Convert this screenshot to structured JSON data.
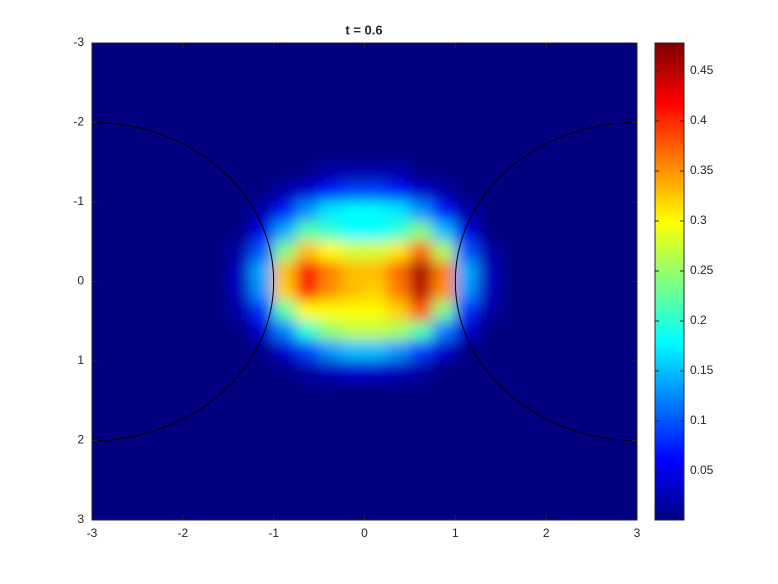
{
  "chart_data": {
    "type": "heatmap",
    "title": "t = 0.6",
    "x": [
      -2.875,
      -2.625,
      -2.375,
      -2.125,
      -1.875,
      -1.625,
      -1.375,
      -1.125,
      -0.875,
      -0.625,
      -0.375,
      -0.125,
      0.125,
      0.375,
      0.625,
      0.875,
      1.125,
      1.375,
      1.625,
      1.875,
      2.125,
      2.375,
      2.625,
      2.875
    ],
    "y": [
      -2.875,
      -2.625,
      -2.375,
      -2.125,
      -1.875,
      -1.625,
      -1.375,
      -1.125,
      -0.875,
      -0.625,
      -0.375,
      -0.125,
      0.125,
      0.375,
      0.625,
      0.875,
      1.125,
      1.375,
      1.625,
      1.875,
      2.125,
      2.375,
      2.625,
      2.875
    ],
    "z": [
      [
        0,
        0,
        0,
        0,
        0,
        0,
        0,
        0,
        0,
        0,
        0,
        0,
        0,
        0,
        0,
        0,
        0,
        0,
        0,
        0,
        0,
        0,
        0,
        0
      ],
      [
        0,
        0,
        0,
        0,
        0,
        0,
        0,
        0,
        0,
        0,
        0,
        0,
        0,
        0,
        0,
        0,
        0,
        0,
        0,
        0,
        0,
        0,
        0,
        0
      ],
      [
        0,
        0,
        0,
        0,
        0,
        0,
        0,
        0,
        0,
        0,
        0,
        0,
        0,
        0,
        0,
        0,
        0,
        0,
        0,
        0,
        0,
        0,
        0,
        0
      ],
      [
        0,
        0,
        0,
        0,
        0,
        0,
        0,
        0,
        0,
        0,
        0,
        0,
        0,
        0,
        0,
        0,
        0,
        0,
        0,
        0,
        0,
        0,
        0,
        0
      ],
      [
        0,
        0,
        0,
        0,
        0,
        0,
        0,
        0,
        0,
        0,
        0,
        0,
        0,
        0,
        0,
        0,
        0,
        0,
        0,
        0,
        0,
        0,
        0,
        0
      ],
      [
        0,
        0,
        0,
        0,
        0,
        0,
        0,
        0,
        0,
        0,
        0,
        0,
        0,
        0,
        0,
        0,
        0,
        0,
        0,
        0,
        0,
        0,
        0,
        0
      ],
      [
        0,
        0,
        0,
        0,
        0,
        0,
        0,
        0,
        0,
        0,
        0.02,
        0.02,
        0.02,
        0.02,
        0,
        0,
        0,
        0,
        0,
        0,
        0,
        0,
        0,
        0
      ],
      [
        0,
        0,
        0,
        0,
        0,
        0,
        0,
        0,
        0.02,
        0.04,
        0.07,
        0.09,
        0.09,
        0.07,
        0.04,
        0.02,
        0,
        0,
        0,
        0,
        0,
        0,
        0,
        0
      ],
      [
        0,
        0,
        0,
        0,
        0,
        0,
        0,
        0.02,
        0.07,
        0.13,
        0.17,
        0.18,
        0.18,
        0.17,
        0.13,
        0.07,
        0.02,
        0,
        0,
        0,
        0,
        0,
        0,
        0
      ],
      [
        0,
        0,
        0,
        0,
        0,
        0,
        0,
        0.05,
        0.14,
        0.22,
        0.2,
        0.18,
        0.18,
        0.2,
        0.24,
        0.15,
        0.05,
        0,
        0,
        0,
        0,
        0,
        0,
        0
      ],
      [
        0,
        0,
        0,
        0,
        0,
        0,
        0.02,
        0.1,
        0.24,
        0.33,
        0.3,
        0.28,
        0.28,
        0.31,
        0.37,
        0.26,
        0.1,
        0.02,
        0,
        0,
        0,
        0,
        0,
        0
      ],
      [
        0,
        0,
        0,
        0,
        0,
        0,
        0.03,
        0.14,
        0.33,
        0.42,
        0.36,
        0.33,
        0.33,
        0.37,
        0.46,
        0.36,
        0.14,
        0.03,
        0,
        0,
        0,
        0,
        0,
        0
      ],
      [
        0,
        0,
        0,
        0,
        0,
        0,
        0.03,
        0.13,
        0.32,
        0.41,
        0.35,
        0.33,
        0.32,
        0.36,
        0.45,
        0.35,
        0.13,
        0.03,
        0,
        0,
        0,
        0,
        0,
        0
      ],
      [
        0,
        0,
        0,
        0,
        0,
        0,
        0.02,
        0.08,
        0.22,
        0.3,
        0.3,
        0.3,
        0.3,
        0.32,
        0.38,
        0.24,
        0.08,
        0.02,
        0,
        0,
        0,
        0,
        0,
        0
      ],
      [
        0,
        0,
        0,
        0,
        0,
        0,
        0,
        0.04,
        0.12,
        0.2,
        0.25,
        0.27,
        0.27,
        0.26,
        0.22,
        0.12,
        0.04,
        0,
        0,
        0,
        0,
        0,
        0,
        0
      ],
      [
        0,
        0,
        0,
        0,
        0,
        0,
        0,
        0,
        0.04,
        0.09,
        0.13,
        0.15,
        0.15,
        0.13,
        0.09,
        0.04,
        0,
        0,
        0,
        0,
        0,
        0,
        0,
        0
      ],
      [
        0,
        0,
        0,
        0,
        0,
        0,
        0,
        0,
        0,
        0.02,
        0.03,
        0.04,
        0.04,
        0.03,
        0.02,
        0,
        0,
        0,
        0,
        0,
        0,
        0,
        0,
        0
      ],
      [
        0,
        0,
        0,
        0,
        0,
        0,
        0,
        0,
        0,
        0,
        0,
        0,
        0,
        0,
        0,
        0,
        0,
        0,
        0,
        0,
        0,
        0,
        0,
        0
      ],
      [
        0,
        0,
        0,
        0,
        0,
        0,
        0,
        0,
        0,
        0,
        0,
        0,
        0,
        0,
        0,
        0,
        0,
        0,
        0,
        0,
        0,
        0,
        0,
        0
      ],
      [
        0,
        0,
        0,
        0,
        0,
        0,
        0,
        0,
        0,
        0,
        0,
        0,
        0,
        0,
        0,
        0,
        0,
        0,
        0,
        0,
        0,
        0,
        0,
        0
      ],
      [
        0,
        0,
        0,
        0,
        0,
        0,
        0,
        0,
        0,
        0,
        0,
        0,
        0,
        0,
        0,
        0,
        0,
        0,
        0,
        0,
        0,
        0,
        0,
        0
      ],
      [
        0,
        0,
        0,
        0,
        0,
        0,
        0,
        0,
        0,
        0,
        0,
        0,
        0,
        0,
        0,
        0,
        0,
        0,
        0,
        0,
        0,
        0,
        0,
        0
      ],
      [
        0,
        0,
        0,
        0,
        0,
        0,
        0,
        0,
        0,
        0,
        0,
        0,
        0,
        0,
        0,
        0,
        0,
        0,
        0,
        0,
        0,
        0,
        0,
        0
      ],
      [
        0,
        0,
        0,
        0,
        0,
        0,
        0,
        0,
        0,
        0,
        0,
        0,
        0,
        0,
        0,
        0,
        0,
        0,
        0,
        0,
        0,
        0,
        0,
        0
      ]
    ],
    "xlim": [
      -3,
      3
    ],
    "ylim": [
      -3,
      3
    ],
    "y_reversed": true,
    "xticks": [
      -3,
      -2,
      -1,
      0,
      1,
      2,
      3
    ],
    "yticks": [
      -3,
      -2,
      -1,
      0,
      1,
      2,
      3
    ],
    "colormap": "jet",
    "clim": [
      0.001,
      0.478
    ],
    "colorbar_ticks": [
      0.05,
      0.1,
      0.15,
      0.2,
      0.25,
      0.3,
      0.35,
      0.4,
      0.45
    ],
    "circles": [
      {
        "cx": -3,
        "cy": 0,
        "r": 2,
        "color": "#000000"
      },
      {
        "cx": 3,
        "cy": 0,
        "r": 2,
        "color": "#000000"
      }
    ]
  }
}
